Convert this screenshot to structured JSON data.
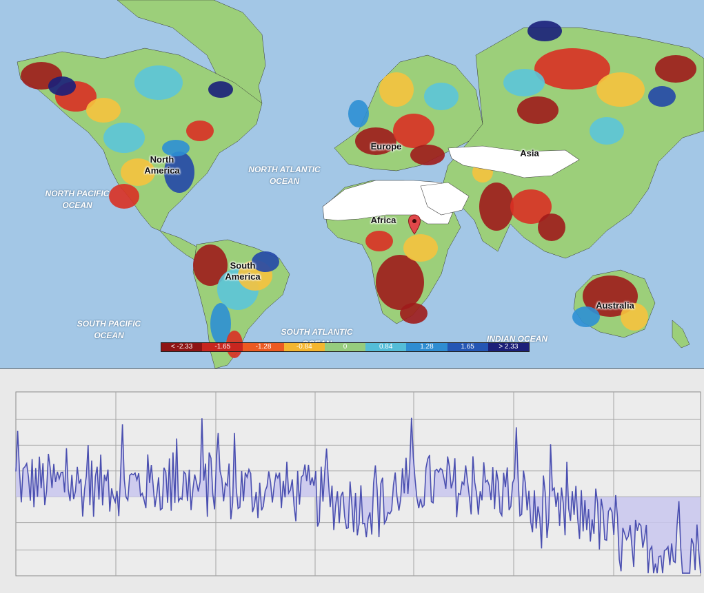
{
  "map": {
    "colors": {
      "ocean": "#a3c7e6",
      "land_nodata": "#ffffff",
      "very_dry": "#9e1b1b",
      "dry": "#d93024",
      "moderately_dry": "#f07a2a",
      "slightly_dry": "#f6c23e",
      "normal": "#9ccf7a",
      "slightly_wet": "#5cc4d9",
      "moderately_wet": "#2e8fd4",
      "wet": "#2347a8",
      "very_wet": "#1a1f7a"
    },
    "ocean_labels": [
      {
        "line1": "NORTH PACIFIC",
        "line2": "OCEAN"
      },
      {
        "line1": "NORTH ATLANTIC",
        "line2": "OCEAN"
      },
      {
        "line1": "SOUTH PACIFIC",
        "line2": "OCEAN"
      },
      {
        "line1": "SOUTH ATLANTIC",
        "line2": "OCEAN"
      },
      {
        "line1": "INDIAN OCEAN",
        "line2": ""
      }
    ],
    "continent_labels": [
      {
        "line1": "North",
        "line2": "America"
      },
      {
        "line1": "South",
        "line2": "America"
      },
      {
        "line1": "Europe",
        "line2": ""
      },
      {
        "line1": "Africa",
        "line2": ""
      },
      {
        "line1": "Asia",
        "line2": ""
      },
      {
        "line1": "Australia",
        "line2": ""
      }
    ],
    "legend": [
      {
        "label": "< -2.33",
        "color": "#8e1414"
      },
      {
        "label": "-1.65",
        "color": "#c8261f"
      },
      {
        "label": "-1.28",
        "color": "#ec5a22"
      },
      {
        "label": "-0.84",
        "color": "#f4b62f"
      },
      {
        "label": "0",
        "color": "#96cc7e"
      },
      {
        "label": "0.84",
        "color": "#54bdd8"
      },
      {
        "label": "1.28",
        "color": "#2f8dd2"
      },
      {
        "label": "1.65",
        "color": "#2456b4"
      },
      {
        "label": "> 2.33",
        "color": "#1c1f78"
      }
    ],
    "marker_icon": "location-pin-icon"
  },
  "chart_data": {
    "type": "area",
    "title": "",
    "xlabel": "",
    "ylabel": "",
    "baseline": 0,
    "ylim": [
      -3,
      4
    ],
    "n_points": 380,
    "line_color": "#4a4fb0",
    "fill_color": "#c9c7ee",
    "trend_segments": [
      {
        "from": 0,
        "to": 0.1,
        "v0": 0.6,
        "v1": 0.4
      },
      {
        "from": 0.1,
        "to": 0.2,
        "v0": 0.4,
        "v1": 0.5
      },
      {
        "from": 0.2,
        "to": 0.3,
        "v0": 0.5,
        "v1": 0.3
      },
      {
        "from": 0.3,
        "to": 0.4,
        "v0": 0.3,
        "v1": 0.2
      },
      {
        "from": 0.4,
        "to": 0.5,
        "v0": 0.2,
        "v1": -0.3
      },
      {
        "from": 0.5,
        "to": 0.55,
        "v0": -0.3,
        "v1": -0.6
      },
      {
        "from": 0.55,
        "to": 0.6,
        "v0": 0.3,
        "v1": 0.5
      },
      {
        "from": 0.6,
        "to": 0.7,
        "v0": 0.5,
        "v1": 0.3
      },
      {
        "from": 0.7,
        "to": 0.75,
        "v0": 0.3,
        "v1": 0.0
      },
      {
        "from": 0.75,
        "to": 0.85,
        "v0": -0.8,
        "v1": -0.7
      },
      {
        "from": 0.85,
        "to": 0.9,
        "v0": -1.0,
        "v1": -2.2
      },
      {
        "from": 0.9,
        "to": 1.0,
        "v0": -2.0,
        "v1": -2.0
      }
    ]
  }
}
